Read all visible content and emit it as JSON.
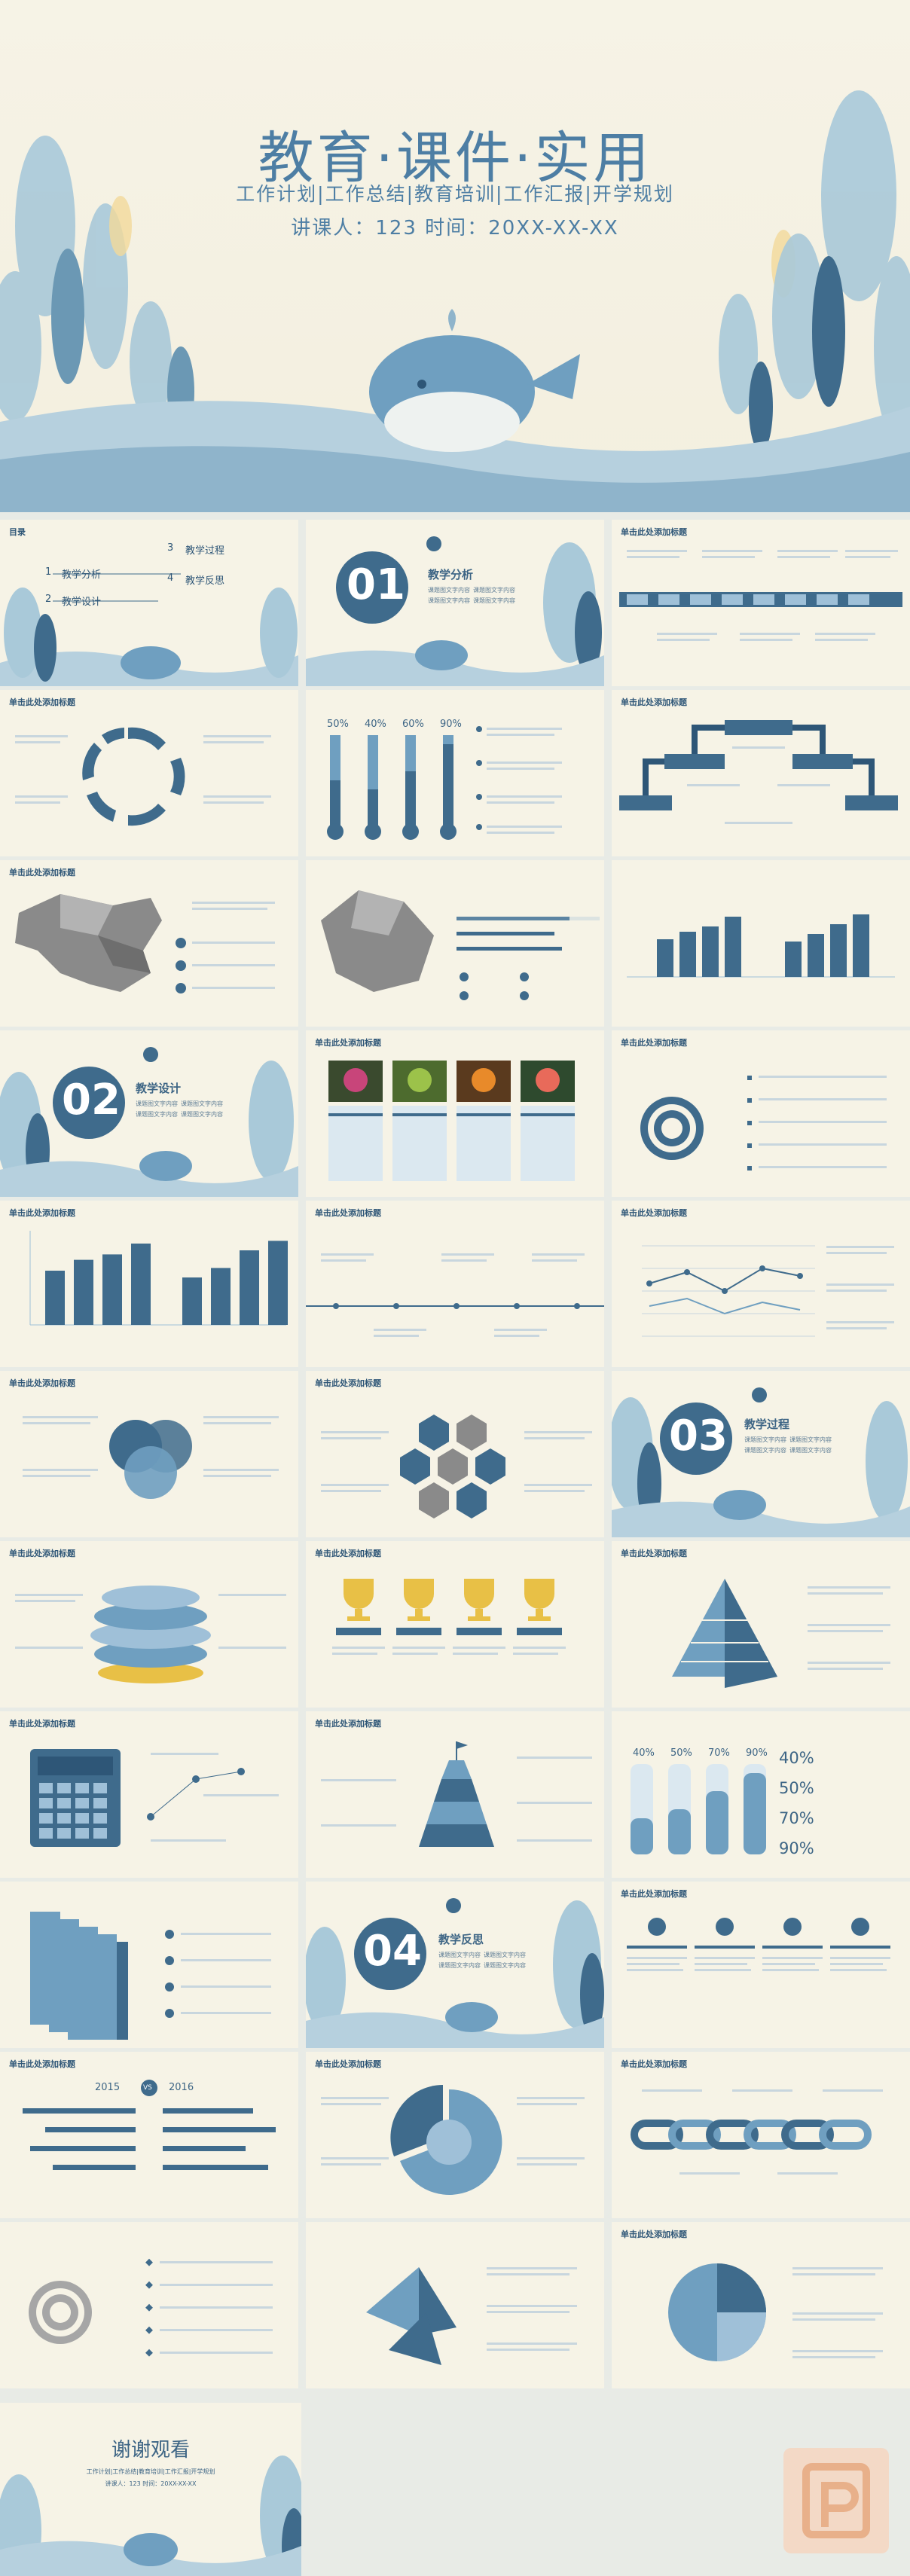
{
  "hero": {
    "title": "教育·课件·实用",
    "subtitle": "工作计划|工作总结|教育培训|工作汇报|开学规划",
    "lecturer": "讲课人：123  时间：20XX-XX-XX"
  },
  "slide_heading": "单击此处添加标题",
  "toc": {
    "title": "目录",
    "items": [
      {
        "num": "1",
        "label": "教学分析"
      },
      {
        "num": "2",
        "label": "教学设计"
      },
      {
        "num": "3",
        "label": "教学过程"
      },
      {
        "num": "4",
        "label": "教学反思"
      }
    ]
  },
  "sections": [
    {
      "num": "01",
      "title": "教学分析",
      "sub1": "课题图文字内容",
      "sub2": "课题图文字内容",
      "sub3": "课题图文字内容",
      "sub4": "课题图文字内容"
    },
    {
      "num": "02",
      "title": "教学设计",
      "sub1": "课题图文字内容",
      "sub2": "课题图文字内容",
      "sub3": "课题图文字内容",
      "sub4": "课题图文字内容"
    },
    {
      "num": "03",
      "title": "教学过程",
      "sub1": "课题图文字内容",
      "sub2": "课题图文字内容",
      "sub3": "课题图文字内容",
      "sub4": "课题图文字内容"
    },
    {
      "num": "04",
      "title": "教学反思",
      "sub1": "课题图文字内容",
      "sub2": "课题图文字内容",
      "sub3": "课题图文字内容",
      "sub4": "课题图文字内容"
    }
  ],
  "thermo": {
    "labels": [
      "50%",
      "40%",
      "60%",
      "90%"
    ],
    "values": [
      50,
      40,
      60,
      90
    ]
  },
  "tubes": {
    "labels": [
      "40%",
      "50%",
      "70%",
      "90%"
    ],
    "side": [
      "40%",
      "50%",
      "70%",
      "90%"
    ],
    "values": [
      40,
      50,
      70,
      90
    ]
  },
  "years": {
    "left": "2015",
    "mid": "VS",
    "right": "2016"
  },
  "bars_a": {
    "values": [
      40,
      48,
      52,
      60,
      35,
      42,
      55,
      62
    ]
  },
  "thanks": {
    "title": "谢谢观看",
    "subtitle": "工作计划|工作总结|教育培训|工作汇报|开学规划",
    "lecturer": "讲课人：123  时间：20XX-XX-XX"
  },
  "colors": {
    "primary": "#3f6b8c",
    "light": "#9fc0d8",
    "bg": "#f6f3e6",
    "accent": "#e8c046"
  }
}
